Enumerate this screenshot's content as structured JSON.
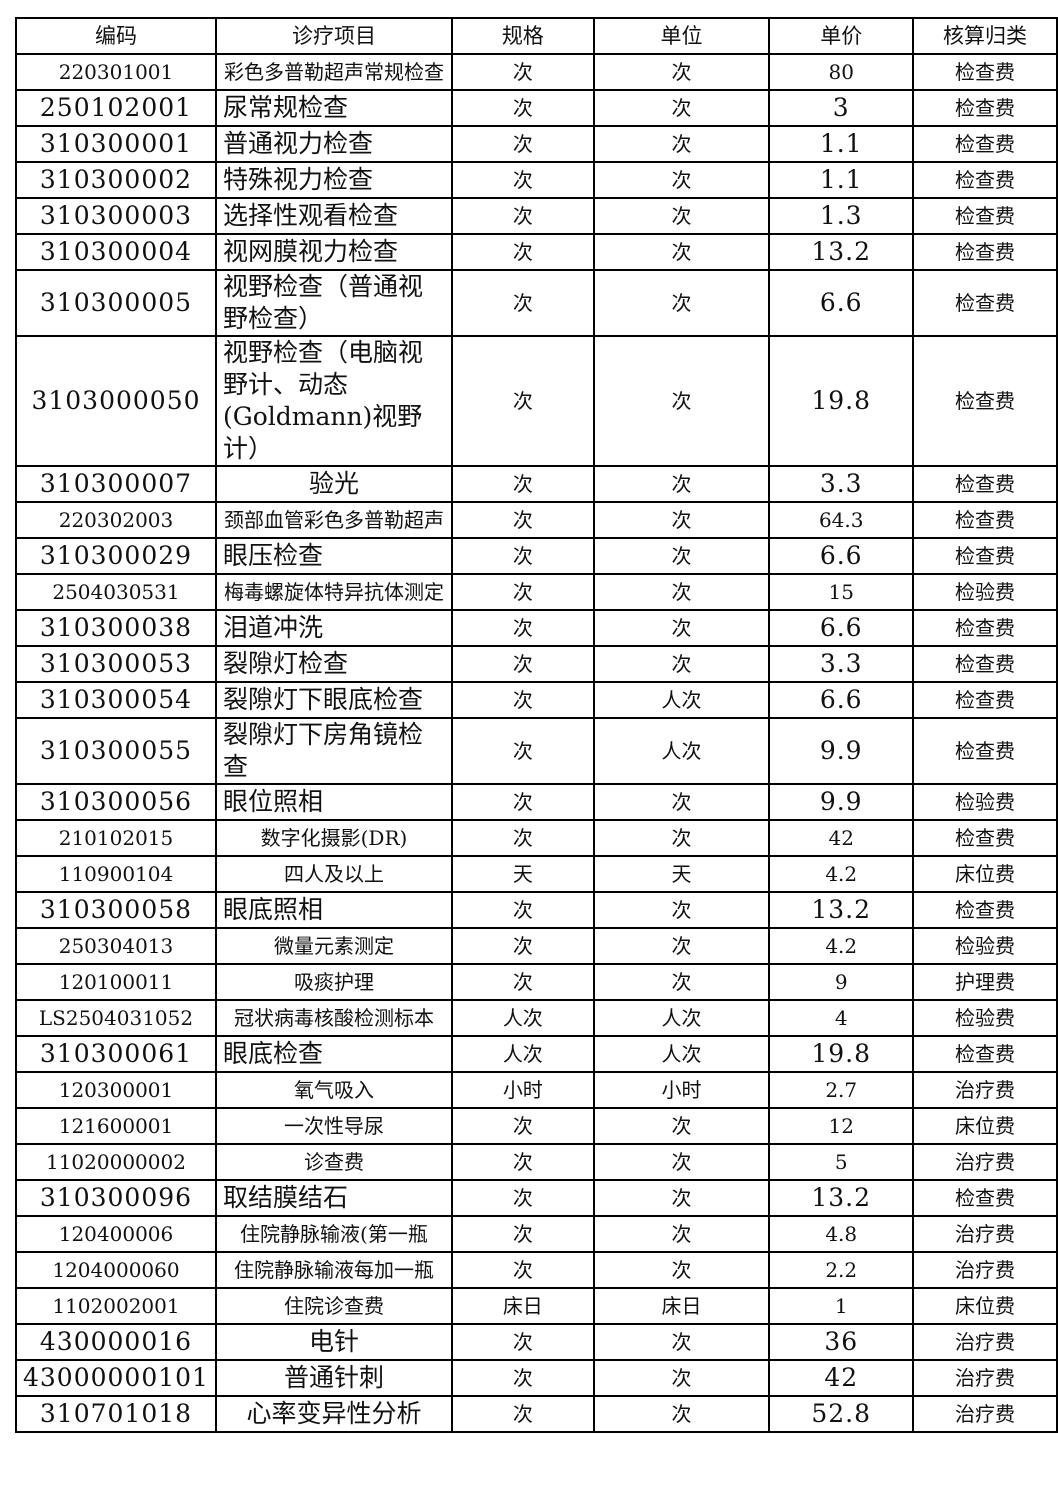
{
  "headers": [
    "编码",
    "诊疗项目",
    "规格",
    "单位",
    "单价",
    "核算归类"
  ],
  "rows": [
    {
      "code": "220301001",
      "item": "彩色多普勒超声常规检查",
      "spec": "次",
      "unit": "次",
      "price": "80",
      "category": "检查费"
    },
    {
      "code": "250102001",
      "item": "尿常规检查",
      "spec": "次",
      "unit": "次",
      "price": "3",
      "category": "检查费"
    },
    {
      "code": "310300001",
      "item": "普通视力检查",
      "spec": "次",
      "unit": "次",
      "price": "1.1",
      "category": "检查费"
    },
    {
      "code": "310300002",
      "item": "特殊视力检查",
      "spec": "次",
      "unit": "次",
      "price": "1.1",
      "category": "检查费"
    },
    {
      "code": "310300003",
      "item": "选择性观看检查",
      "spec": "次",
      "unit": "次",
      "price": "1.3",
      "category": "检查费"
    },
    {
      "code": "310300004",
      "item": "视网膜视力检查",
      "spec": "次",
      "unit": "次",
      "price": "13.2",
      "category": "检查费"
    },
    {
      "code": "310300005",
      "item": "视野检查（普通视野检查）",
      "spec": "次",
      "unit": "次",
      "price": "6.6",
      "category": "检查费"
    },
    {
      "code": "3103000050",
      "item": "视野检查（电脑视野计、动态(Goldmann)视野计）",
      "spec": "次",
      "unit": "次",
      "price": "19.8",
      "category": "检查费"
    },
    {
      "code": "310300007",
      "item": "验光",
      "spec": "次",
      "unit": "次",
      "price": "3.3",
      "category": "检查费"
    },
    {
      "code": "220302003",
      "item": "颈部血管彩色多普勒超声",
      "spec": "次",
      "unit": "次",
      "price": "64.3",
      "category": "检查费"
    },
    {
      "code": "310300029",
      "item": "眼压检查",
      "spec": "次",
      "unit": "次",
      "price": "6.6",
      "category": "检查费"
    },
    {
      "code": "2504030531",
      "item": "梅毒螺旋体特异抗体测定",
      "spec": "次",
      "unit": "次",
      "price": "15",
      "category": "检验费"
    },
    {
      "code": "310300038",
      "item": "泪道冲洗",
      "spec": "次",
      "unit": "次",
      "price": "6.6",
      "category": "检查费"
    },
    {
      "code": "310300053",
      "item": "裂隙灯检查",
      "spec": "次",
      "unit": "次",
      "price": "3.3",
      "category": "检查费"
    },
    {
      "code": "310300054",
      "item": "裂隙灯下眼底检查",
      "spec": "次",
      "unit": "人次",
      "price": "6.6",
      "category": "检查费"
    },
    {
      "code": "310300055",
      "item": "裂隙灯下房角镜检查",
      "spec": "次",
      "unit": "人次",
      "price": "9.9",
      "category": "检查费"
    },
    {
      "code": "310300056",
      "item": "眼位照相",
      "spec": "次",
      "unit": "次",
      "price": "9.9",
      "category": "检验费"
    },
    {
      "code": "210102015",
      "item": "数字化摄影(DR)",
      "spec": "次",
      "unit": "次",
      "price": "42",
      "category": "检查费"
    },
    {
      "code": "110900104",
      "item": "四人及以上",
      "spec": "天",
      "unit": "天",
      "price": "4.2",
      "category": "床位费"
    },
    {
      "code": "310300058",
      "item": "眼底照相",
      "spec": "次",
      "unit": "次",
      "price": "13.2",
      "category": "检查费"
    },
    {
      "code": "250304013",
      "item": "微量元素测定",
      "spec": "次",
      "unit": "次",
      "price": "4.2",
      "category": "检验费"
    },
    {
      "code": "120100011",
      "item": "吸痰护理",
      "spec": "次",
      "unit": "次",
      "price": "9",
      "category": "护理费"
    },
    {
      "code": "LS2504031052",
      "item": "冠状病毒核酸检测标本",
      "spec": "人次",
      "unit": "人次",
      "price": "4",
      "category": "检验费"
    },
    {
      "code": "310300061",
      "item": "眼底检查",
      "spec": "人次",
      "unit": "人次",
      "price": "19.8",
      "category": "检查费"
    },
    {
      "code": "120300001",
      "item": "氧气吸入",
      "spec": "小时",
      "unit": "小时",
      "price": "2.7",
      "category": "治疗费"
    },
    {
      "code": "121600001",
      "item": "一次性导尿",
      "spec": "次",
      "unit": "次",
      "price": "12",
      "category": "床位费"
    },
    {
      "code": "11020000002",
      "item": "诊查费",
      "spec": "次",
      "unit": "次",
      "price": "5",
      "category": "治疗费"
    },
    {
      "code": "310300096",
      "item": "取结膜结石",
      "spec": "次",
      "unit": "次",
      "price": "13.2",
      "category": "检查费"
    },
    {
      "code": "120400006",
      "item": "住院静脉输液(第一瓶",
      "spec": "次",
      "unit": "次",
      "price": "4.8",
      "category": "治疗费"
    },
    {
      "code": "1204000060",
      "item": "住院静脉输液每加一瓶",
      "spec": "次",
      "unit": "次",
      "price": "2.2",
      "category": "治疗费"
    },
    {
      "code": "1102002001",
      "item": "住院诊查费",
      "spec": "床日",
      "unit": "床日",
      "price": "1",
      "category": "床位费"
    },
    {
      "code": "430000016",
      "item": "电针",
      "spec": "次",
      "unit": "次",
      "price": "36",
      "category": "治疗费"
    },
    {
      "code": "43000000101",
      "item": "普通针刺",
      "spec": "次",
      "unit": "次",
      "price": "42",
      "category": "治疗费"
    },
    {
      "code": "310701018",
      "item": "心率变异性分析",
      "spec": "次",
      "unit": "次",
      "price": "52.8",
      "category": "治疗费"
    }
  ]
}
